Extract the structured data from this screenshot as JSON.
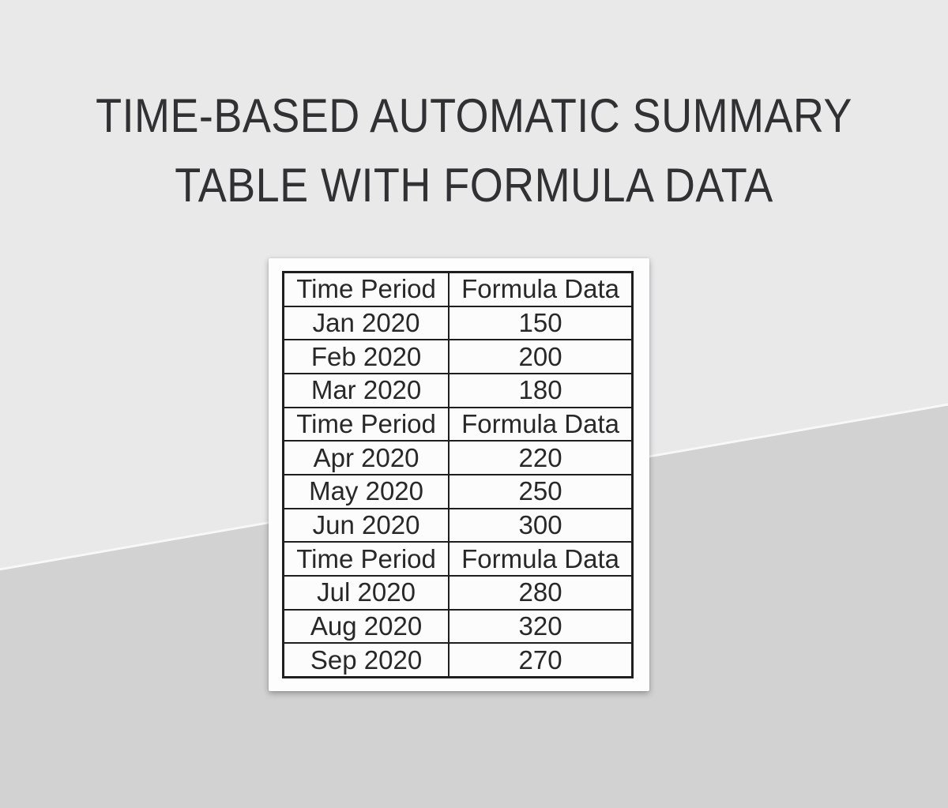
{
  "title": {
    "line1": "TIME-BASED AUTOMATIC SUMMARY",
    "line2": "TABLE WITH FORMULA DATA",
    "color": "#313133"
  },
  "colors": {
    "background_upper": "#e9e9ea",
    "background_lower": "#d2d2d3",
    "card_background": "#fdfdfd",
    "table_border": "#1f1f1f",
    "table_text": "#282828"
  },
  "table": {
    "sections": [
      {
        "header": {
          "period_label": "Time Period",
          "value_label": "Formula Data"
        },
        "rows": [
          {
            "period": "Jan 2020",
            "value": "150"
          },
          {
            "period": "Feb 2020",
            "value": "200"
          },
          {
            "period": "Mar 2020",
            "value": "180"
          }
        ]
      },
      {
        "header": {
          "period_label": "Time Period",
          "value_label": "Formula Data"
        },
        "rows": [
          {
            "period": "Apr 2020",
            "value": "220"
          },
          {
            "period": "May 2020",
            "value": "250"
          },
          {
            "period": "Jun 2020",
            "value": "300"
          }
        ]
      },
      {
        "header": {
          "period_label": "Time Period",
          "value_label": "Formula Data"
        },
        "rows": [
          {
            "period": "Jul 2020",
            "value": "280"
          },
          {
            "period": "Aug 2020",
            "value": "320"
          },
          {
            "period": "Sep 2020",
            "value": "270"
          }
        ]
      }
    ]
  },
  "chart_data": {
    "type": "table",
    "columns": [
      "Time Period",
      "Formula Data"
    ],
    "rows": [
      [
        "Jan 2020",
        150
      ],
      [
        "Feb 2020",
        200
      ],
      [
        "Mar 2020",
        180
      ],
      [
        "Apr 2020",
        220
      ],
      [
        "May 2020",
        250
      ],
      [
        "Jun 2020",
        300
      ],
      [
        "Jul 2020",
        280
      ],
      [
        "Aug 2020",
        320
      ],
      [
        "Sep 2020",
        270
      ]
    ],
    "title": "Time-Based Automatic Summary Table With Formula Data"
  }
}
